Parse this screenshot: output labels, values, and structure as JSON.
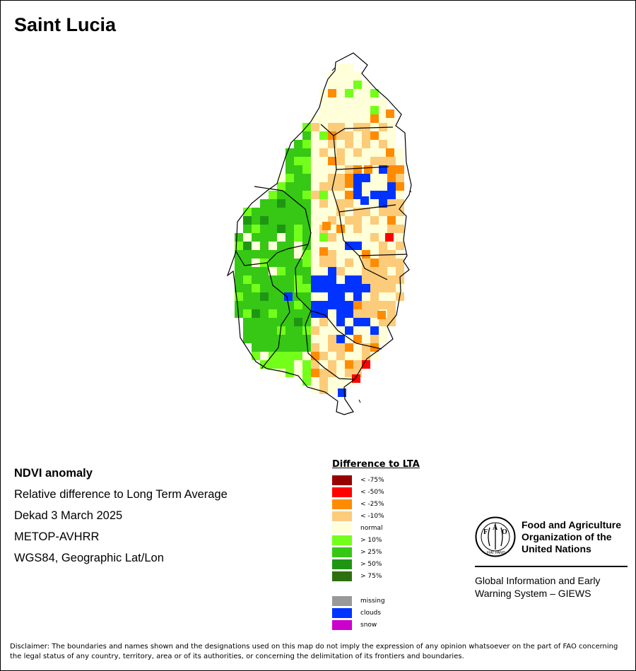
{
  "title": "Saint Lucia",
  "meta": {
    "lines": [
      "NDVI anomaly",
      "Relative difference to Long Term Average",
      "Dekad 3 March 2025",
      "METOP-AVHRR",
      "WGS84, Geographic Lat/Lon"
    ]
  },
  "legend": {
    "title": "Difference to LTA",
    "items": [
      {
        "label": "< -75%",
        "color": "#990000"
      },
      {
        "label": "< -50%",
        "color": "#ff0000"
      },
      {
        "label": "< -25%",
        "color": "#ff8c00"
      },
      {
        "label": "< -10%",
        "color": "#fccc7a"
      },
      {
        "label": "normal",
        "color": "#ffffd9"
      },
      {
        "label": "> 10%",
        "color": "#73ff1a"
      },
      {
        "label": "> 25%",
        "color": "#36c814"
      },
      {
        "label": "> 50%",
        "color": "#1e9614"
      },
      {
        "label": "> 75%",
        "color": "#2e7010"
      }
    ],
    "extra_items": [
      {
        "label": "missing",
        "color": "#999999"
      },
      {
        "label": "clouds",
        "color": "#0033ff"
      },
      {
        "label": "snow",
        "color": "#cc00cc"
      }
    ]
  },
  "fao": {
    "name_lines": [
      "Food and Agriculture",
      "Organization of the",
      "United Nations"
    ],
    "logo_letters": [
      "F",
      "A",
      "O"
    ],
    "logo_motto": "FIAT PANIS",
    "giews_lines": [
      "Global Information and Early",
      "Warning System – GIEWS"
    ]
  },
  "disclaimer": "Disclaimer: The boundaries and names shown and the designations used on this map do not imply the expression of any opinion whatsoever on the part of FAO concerning the legal status of any country, territory, area or of its authorities, or concerning the delimitation of its frontiers and boundaries.",
  "colors": {
    "lt75": "#990000",
    "lt50": "#ff0000",
    "lt25": "#ff8c00",
    "lt10": "#fccc7a",
    "normal": "#ffffd9",
    "gt10": "#73ff1a",
    "gt25": "#36c814",
    "gt50": "#1e9614",
    "clouds": "#0033ff"
  }
}
